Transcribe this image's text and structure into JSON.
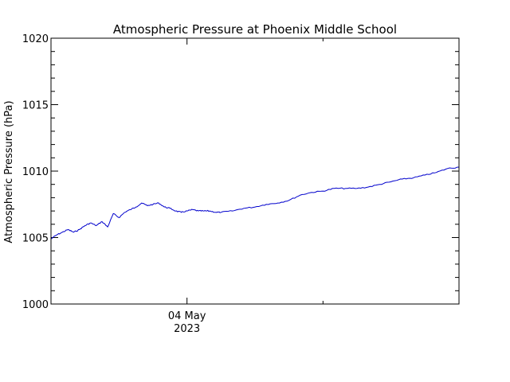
{
  "chart_data": {
    "type": "line",
    "title": "Atmospheric Pressure at Phoenix Middle School",
    "xlabel": "",
    "ylabel": "Atmospheric Pressure (hPa)",
    "ylim": [
      1000,
      1020
    ],
    "xlim": [
      "2023-05-03 00:00",
      "2023-05-06 00:00"
    ],
    "grid": false,
    "y_ticks": [
      "1000",
      "1005",
      "1010",
      "1015",
      "1020"
    ],
    "x_tick_labels": [
      {
        "x": "2023-05-04 00:00",
        "line1": "04 May",
        "line2": "2023"
      }
    ],
    "series": [
      {
        "color": "#0000cc",
        "x": [
          "2023-05-03 00:00",
          "2023-05-03 01:00",
          "2023-05-03 02:00",
          "2023-05-03 03:00",
          "2023-05-03 04:00",
          "2023-05-03 05:00",
          "2023-05-03 06:00",
          "2023-05-03 07:00",
          "2023-05-03 08:00",
          "2023-05-03 09:00",
          "2023-05-03 10:00",
          "2023-05-03 11:00",
          "2023-05-03 12:00",
          "2023-05-03 13:00",
          "2023-05-03 14:00",
          "2023-05-03 15:00",
          "2023-05-03 16:00",
          "2023-05-03 17:00",
          "2023-05-03 18:00",
          "2023-05-03 19:00",
          "2023-05-03 20:00",
          "2023-05-03 21:00",
          "2023-05-03 22:00",
          "2023-05-03 23:00",
          "2023-05-04 00:00",
          "2023-05-04 01:00",
          "2023-05-04 02:00",
          "2023-05-04 03:00",
          "2023-05-04 04:00",
          "2023-05-04 05:00",
          "2023-05-04 06:00",
          "2023-05-04 08:00",
          "2023-05-04 10:00",
          "2023-05-04 12:00",
          "2023-05-04 14:00",
          "2023-05-04 16:00",
          "2023-05-04 18:00",
          "2023-05-04 20:00",
          "2023-05-04 22:00",
          "2023-05-05 00:00",
          "2023-05-05 02:00",
          "2023-05-05 04:00",
          "2023-05-05 06:00",
          "2023-05-05 08:00",
          "2023-05-05 10:00",
          "2023-05-05 12:00",
          "2023-05-05 14:00",
          "2023-05-05 16:00",
          "2023-05-05 18:00",
          "2023-05-05 20:00",
          "2023-05-05 22:00",
          "2023-05-06 00:00"
        ],
        "y": [
          1004.9,
          1005.2,
          1005.4,
          1005.6,
          1005.4,
          1005.6,
          1005.9,
          1006.1,
          1005.9,
          1006.2,
          1005.8,
          1006.8,
          1006.5,
          1006.9,
          1007.1,
          1007.3,
          1007.6,
          1007.4,
          1007.5,
          1007.6,
          1007.3,
          1007.2,
          1007.0,
          1006.9,
          1007.0,
          1007.1,
          1007.0,
          1007.0,
          1007.0,
          1006.9,
          1006.9,
          1007.0,
          1007.2,
          1007.3,
          1007.5,
          1007.6,
          1007.8,
          1008.2,
          1008.4,
          1008.5,
          1008.7,
          1008.7,
          1008.7,
          1008.8,
          1009.0,
          1009.2,
          1009.4,
          1009.5,
          1009.7,
          1009.9,
          1010.2,
          1010.3
        ]
      }
    ]
  }
}
